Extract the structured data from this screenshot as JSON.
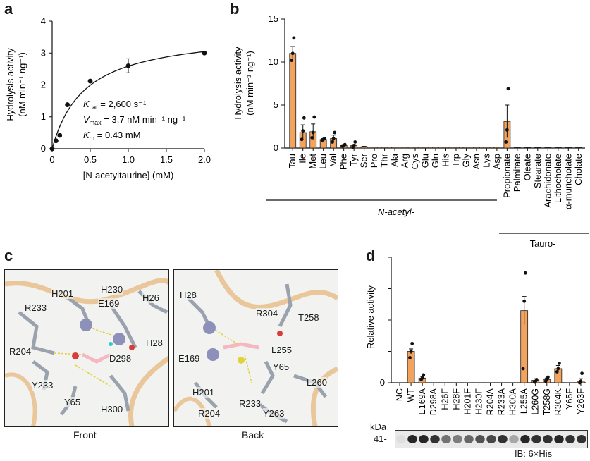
{
  "panels": {
    "a": "a",
    "b": "b",
    "c": "c",
    "d": "d"
  },
  "panel_a": {
    "ylabel_line1": "Hydrolysis activity",
    "ylabel_line2": "(nM min⁻¹ ng⁻¹)",
    "xlabel": "[N-acetyltaurine] (mM)",
    "annot_kcat": "K",
    "annot_kcat_sub": "cat",
    "annot_kcat_val": " = 2,600 s⁻¹",
    "annot_vmax": "V",
    "annot_vmax_sub": "max",
    "annot_vmax_val": " = 3.7 nM min⁻¹ ng⁻¹",
    "annot_km": "K",
    "annot_km_sub": "m",
    "annot_km_val": " = 0.43 mM",
    "xticks": [
      "0",
      "0.5",
      "1.0",
      "1.5",
      "2.0"
    ],
    "yticks": [
      "0",
      "1",
      "2",
      "3",
      "4"
    ]
  },
  "panel_b": {
    "ylabel_line1": "Hydrolysis activity",
    "ylabel_line2": "(nM min⁻¹ ng⁻¹)",
    "yticks": [
      "0",
      "5",
      "10",
      "15"
    ],
    "group_nacetyl": "N-acetyl-",
    "group_tauro": "Tauro-"
  },
  "panel_c": {
    "front_caption": "Front",
    "back_caption": "Back",
    "front_labels": [
      "H201",
      "H230",
      "H26",
      "R233",
      "E169",
      "H28",
      "R204",
      "D298",
      "Y233",
      "Y65",
      "H300"
    ],
    "back_labels": [
      "H28",
      "R304",
      "T258",
      "L255",
      "E169",
      "Y65",
      "H201",
      "R233",
      "L260",
      "R204",
      "Y263"
    ]
  },
  "panel_d": {
    "ylabel": "Relative activity",
    "ytick_zero": "0",
    "kda_label": "kDa",
    "kda_value": "41-",
    "ib_label": "IB: 6×His"
  },
  "chart_data": [
    {
      "type": "scatter",
      "panel": "a",
      "title": "",
      "xlabel": "[N-acetyltaurine] (mM)",
      "ylabel": "Hydrolysis activity (nM min⁻¹ ng⁻¹)",
      "xlim": [
        0,
        2.0
      ],
      "ylim": [
        0,
        4
      ],
      "x": [
        0,
        0.05,
        0.1,
        0.2,
        0.5,
        1.0,
        2.0
      ],
      "y": [
        0.0,
        0.25,
        0.42,
        1.38,
        2.12,
        2.6,
        3.0
      ],
      "err": [
        0,
        0,
        0,
        0,
        0,
        0.22,
        0
      ],
      "fit": {
        "model": "michaelis-menten",
        "vmax": 3.7,
        "km": 0.43
      }
    },
    {
      "type": "bar",
      "panel": "b",
      "categories": [
        "Tau",
        "Ile",
        "Met",
        "Leu",
        "Val",
        "Phe",
        "Tyr",
        "Ser",
        "Pro",
        "Thr",
        "Ala",
        "Arg",
        "Cys",
        "Glu",
        "Gln",
        "His",
        "Trp",
        "Gly",
        "Asn",
        "Lys",
        "Asp",
        "Propionate",
        "Palmitate",
        "Oleate",
        "Stearate",
        "Arachidonate",
        "Lithocholate",
        "α-muricholate",
        "Cholate"
      ],
      "values": [
        11.0,
        1.8,
        1.9,
        1.0,
        1.1,
        0.3,
        0.3,
        0.15,
        0.1,
        0.1,
        0.1,
        0.1,
        0.1,
        0.1,
        0.1,
        0.1,
        0.1,
        0.1,
        0.1,
        0.1,
        0.1,
        3.1,
        0.05,
        0.05,
        0.05,
        0.05,
        0.05,
        0.05,
        0.05
      ],
      "err": [
        0.8,
        0.9,
        0.9,
        0.1,
        0.4,
        0.1,
        0.1,
        0.05,
        0,
        0,
        0,
        0,
        0,
        0,
        0,
        0,
        0,
        0,
        0,
        0,
        0,
        1.9,
        0,
        0,
        0,
        0,
        0,
        0,
        0
      ],
      "points": [
        [
          10.2,
          11.0,
          12.8
        ],
        [
          1.0,
          2.0,
          3.5
        ],
        [
          1.2,
          1.8,
          3.6
        ],
        [
          0.9,
          1.0,
          1.1
        ],
        [
          0.7,
          1.1,
          1.8
        ],
        [
          0.2,
          0.3,
          0.4
        ],
        [
          0.1,
          0.3,
          0.7
        ],
        [],
        [],
        [],
        [],
        [],
        [],
        [],
        [],
        [],
        [],
        [],
        [],
        [],
        [],
        [
          0.7,
          2.1,
          6.9
        ],
        [],
        [],
        [],
        [],
        [],
        [],
        []
      ],
      "ylim": [
        0,
        15
      ],
      "ylabel": "Hydrolysis activity (nM min⁻¹ ng⁻¹)",
      "groups": [
        {
          "label": "N-acetyl-",
          "from": 1,
          "to": 20
        },
        {
          "label": "Tauro-",
          "from": 21,
          "to": 28
        }
      ]
    },
    {
      "type": "bar",
      "panel": "d",
      "categories": [
        "NC",
        "WT",
        "E169A",
        "D298A",
        "H26F",
        "H28F",
        "H201F",
        "H230F",
        "R204A",
        "R233A",
        "H300A",
        "L255A",
        "L260G",
        "T258G",
        "R304K",
        "Y65F",
        "Y263F"
      ],
      "values": [
        0.0,
        1.0,
        0.15,
        0.0,
        0.0,
        0.0,
        0.0,
        0.0,
        0.0,
        0.0,
        0.0,
        2.3,
        0.08,
        0.1,
        0.45,
        0.0,
        0.05
      ],
      "err": [
        0,
        0.08,
        0.05,
        0,
        0,
        0,
        0,
        0,
        0,
        0,
        0,
        0.45,
        0.05,
        0.05,
        0.1,
        0,
        0.08
      ],
      "points": [
        [],
        [
          0.8,
          1.0,
          1.25
        ],
        [
          0.1,
          0.15,
          0.25
        ],
        [],
        [],
        [],
        [],
        [],
        [],
        [],
        [],
        [
          0.45,
          2.6,
          3.5
        ],
        [
          0.02,
          0.05,
          0.1
        ],
        [
          0.05,
          0.1,
          0.18
        ],
        [
          0.35,
          0.45,
          0.62
        ],
        [],
        [
          0.0,
          0.05,
          0.3
        ]
      ],
      "ylim": [
        0,
        4
      ],
      "ylabel": "Relative activity"
    }
  ],
  "colors": {
    "bar_fill": "#f2a35e",
    "bar_stroke": "#222222",
    "dots": "#111111",
    "structure_bg": "#f2f3f1",
    "ribbon": "#e9c79a"
  }
}
